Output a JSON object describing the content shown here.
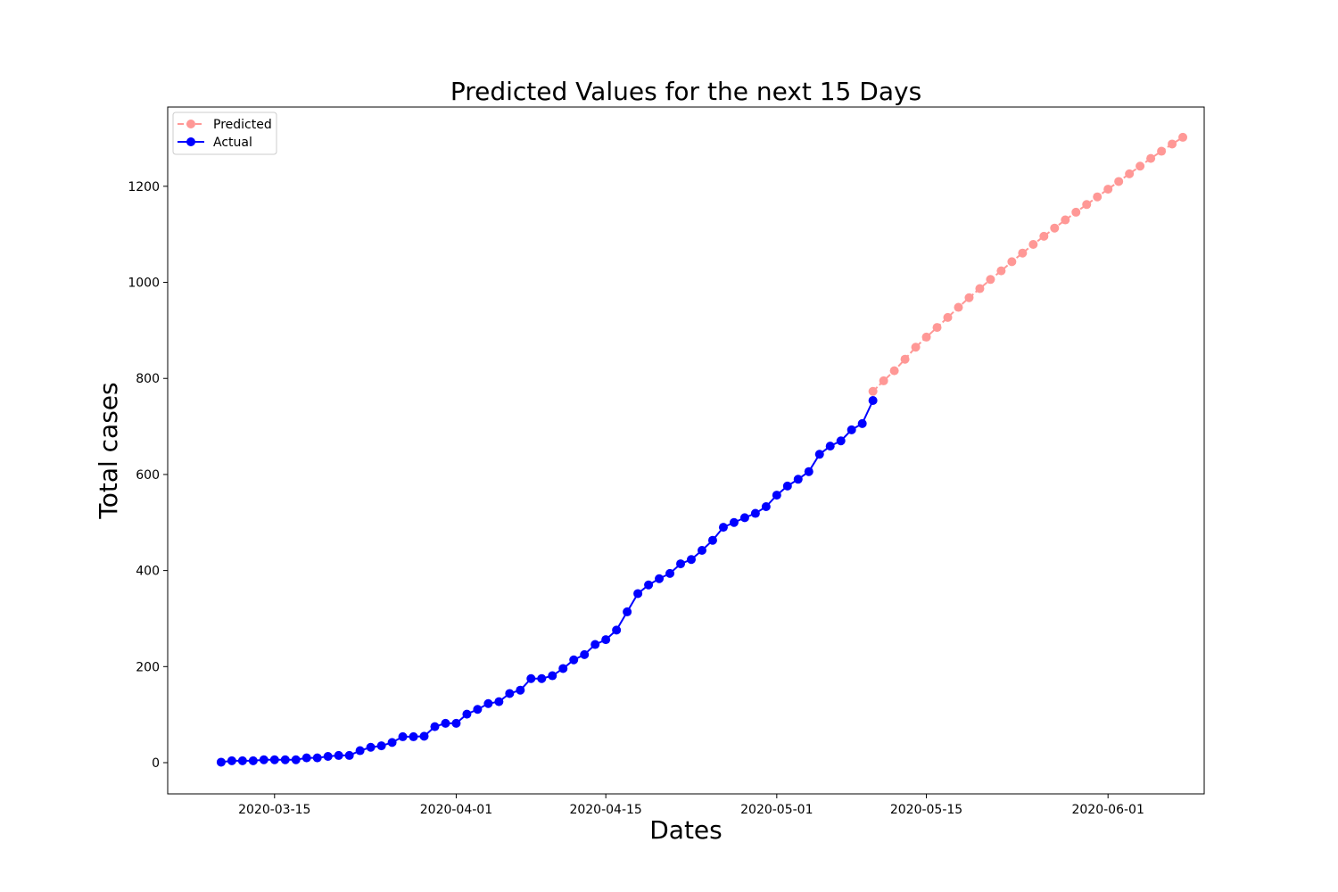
{
  "chart_data": {
    "type": "line",
    "title": "Predicted Values for the next 15 Days",
    "xlabel": "Dates",
    "ylabel": "Total cases",
    "xlim": [
      "2020-03-05",
      "2020-06-10"
    ],
    "ylim": [
      -65,
      1365
    ],
    "x_ticks": [
      "2020-03-15",
      "2020-04-01",
      "2020-04-15",
      "2020-05-01",
      "2020-05-15",
      "2020-06-01"
    ],
    "y_ticks": [
      0,
      200,
      400,
      600,
      800,
      1000,
      1200
    ],
    "grid": false,
    "legend_position": "top-left",
    "series": [
      {
        "name": "Predicted",
        "color": "#ff9896",
        "line_style": "dashed",
        "marker": "circle",
        "start_date": "2020-05-10",
        "values": [
          773,
          795,
          816,
          840,
          865,
          886,
          906,
          927,
          948,
          968,
          987,
          1006,
          1024,
          1043,
          1061,
          1079,
          1096,
          1113,
          1130,
          1146,
          1162,
          1178,
          1194,
          1210,
          1226,
          1242,
          1258,
          1273,
          1288,
          1302
        ]
      },
      {
        "name": "Actual",
        "color": "#0000ff",
        "line_style": "solid",
        "marker": "circle",
        "start_date": "2020-03-10",
        "values": [
          1,
          4,
          4,
          4,
          6,
          6,
          6,
          6,
          10,
          10,
          13,
          15,
          15,
          25,
          32,
          35,
          42,
          54,
          54,
          55,
          75,
          82,
          82,
          101,
          111,
          123,
          127,
          144,
          151,
          175,
          175,
          181,
          196,
          214,
          225,
          246,
          256,
          276,
          314,
          352,
          370,
          383,
          394,
          414,
          423,
          442,
          463,
          490,
          500,
          510,
          519,
          533,
          557,
          576,
          590,
          606,
          642,
          659,
          670,
          693,
          706,
          754
        ]
      }
    ]
  }
}
